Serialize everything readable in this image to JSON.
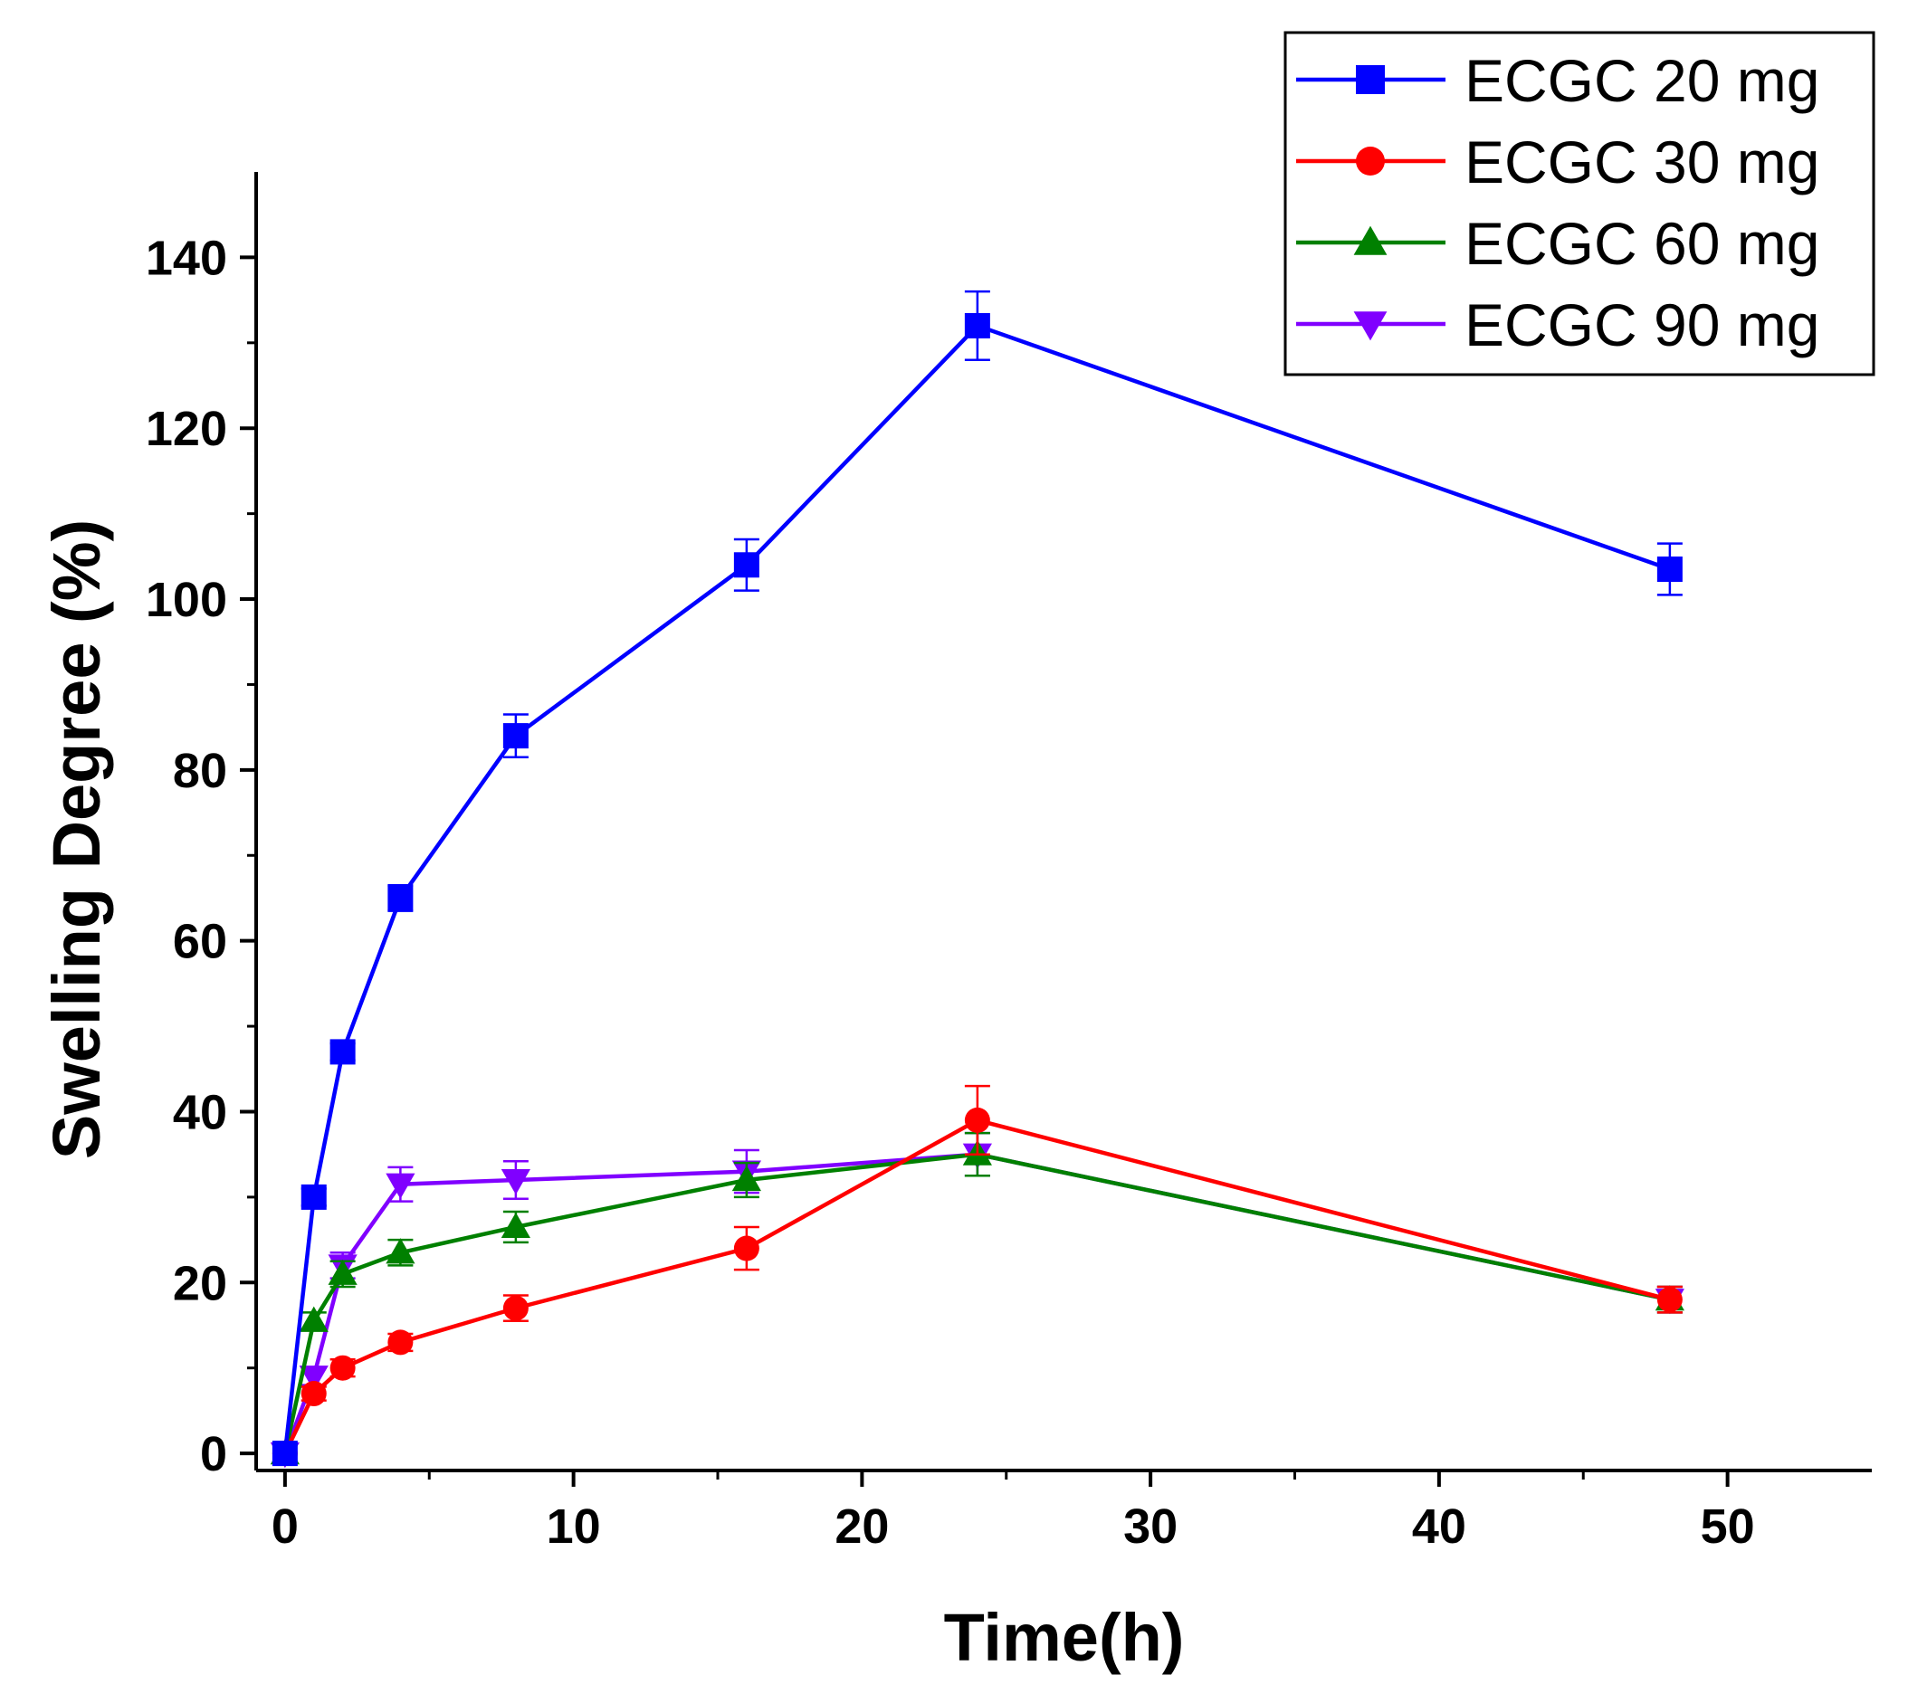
{
  "chart_data": {
    "type": "line",
    "xlabel": "Time(h)",
    "ylabel": "Swelling Degree (%)",
    "xlim": [
      -1,
      55
    ],
    "ylim": [
      -2,
      150
    ],
    "xticks": [
      0,
      10,
      20,
      30,
      40,
      50
    ],
    "yticks": [
      0,
      20,
      40,
      60,
      80,
      100,
      120,
      140
    ],
    "x": [
      0,
      1,
      2,
      4,
      8,
      16,
      24,
      48
    ],
    "legend_position": "top-right",
    "grid": false,
    "series": [
      {
        "name": "ECGC 20 mg",
        "color": "#0000ff",
        "marker": "square",
        "values": [
          0,
          30,
          47,
          65,
          84,
          104,
          132,
          103.5
        ],
        "errors": [
          0,
          1,
          1,
          1.5,
          2.5,
          3,
          4,
          3
        ]
      },
      {
        "name": "ECGC 30 mg",
        "color": "#ff0000",
        "marker": "circle",
        "values": [
          0,
          7,
          10,
          13,
          17,
          24,
          39,
          18
        ],
        "errors": [
          0,
          0.8,
          1,
          1,
          1.5,
          2.5,
          4,
          1.5
        ]
      },
      {
        "name": "ECGC 60 mg",
        "color": "#008000",
        "marker": "triangle-up",
        "values": [
          0,
          15.5,
          21,
          23.5,
          26.5,
          32,
          35,
          18
        ],
        "errors": [
          0,
          1,
          1.5,
          1.5,
          1.8,
          2,
          2.5,
          1.5
        ]
      },
      {
        "name": "ECGC 90 mg",
        "color": "#8000ff",
        "marker": "triangle-down",
        "values": [
          0,
          9,
          22,
          31.5,
          32,
          33,
          35,
          18
        ],
        "errors": [
          0,
          1,
          1.5,
          2,
          2.2,
          2.5,
          2.5,
          1.5
        ]
      }
    ]
  }
}
